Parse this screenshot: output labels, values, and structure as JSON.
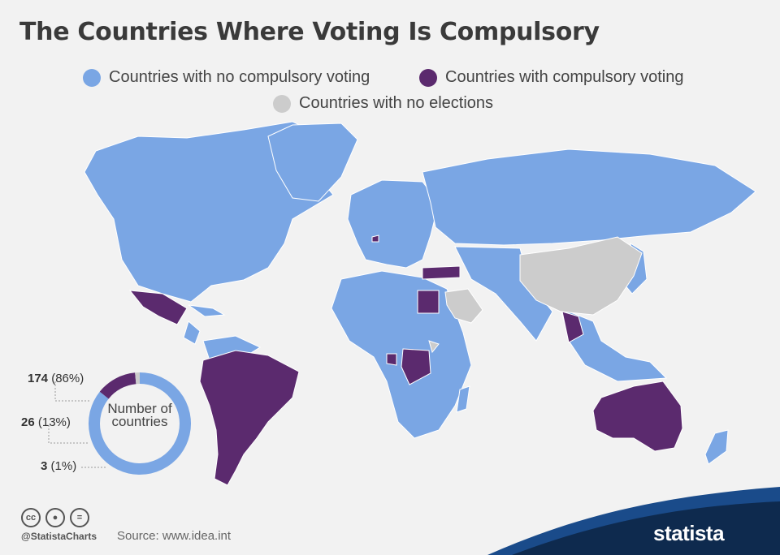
{
  "title": "The Countries Where Voting Is Compulsory",
  "legend": [
    {
      "label": "Countries with no compulsory voting",
      "color": "#7aa6e4"
    },
    {
      "label": "Countries with compulsory voting",
      "color": "#5b2a6e"
    },
    {
      "label": "Countries with no elections",
      "color": "#cccccc"
    }
  ],
  "donut": {
    "center_text": "Number of countries",
    "segments": [
      {
        "count": "174",
        "pct": "(86%)",
        "value": 174,
        "color": "#7aa6e4"
      },
      {
        "count": "26",
        "pct": "(13%)",
        "value": 26,
        "color": "#5b2a6e"
      },
      {
        "count": "3",
        "pct": "(1%)",
        "value": 3,
        "color": "#cccccc"
      }
    ]
  },
  "footer": {
    "handle": "@StatistaCharts",
    "source": "Source: www.idea.int",
    "brand": "statista",
    "icons": [
      "cc-icon",
      "attribution-icon",
      "no-derivatives-icon"
    ]
  }
}
